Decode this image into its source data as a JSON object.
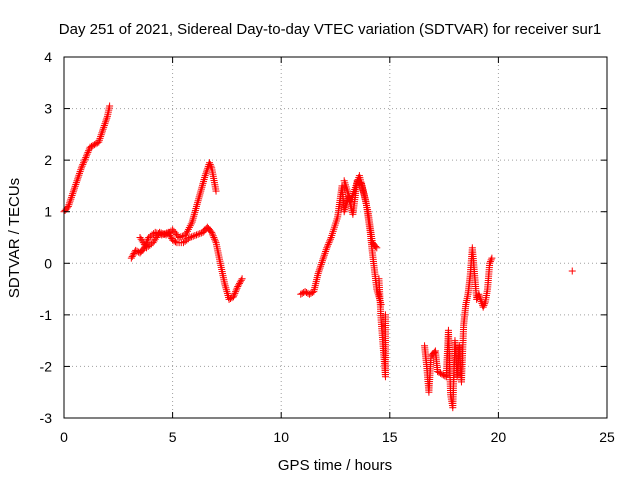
{
  "chart_data": {
    "type": "scatter",
    "title": "Day 251 of 2021, Sidereal Day-to-day VTEC variation (SDTVAR) for receiver sur1",
    "xlabel": "GPS time / hours",
    "ylabel": "SDTVAR / TECUs",
    "xlim": [
      0,
      25
    ],
    "ylim": [
      -3,
      4
    ],
    "xticks": [
      0,
      5,
      10,
      15,
      20,
      25
    ],
    "yticks": [
      -3,
      -2,
      -1,
      0,
      1,
      2,
      3,
      4
    ],
    "xtick_labels": [
      "0",
      "5",
      "10",
      "15",
      "20",
      "25"
    ],
    "ytick_labels": [
      "-3",
      "-2",
      "-1",
      "0",
      "1",
      "2",
      "3",
      "4"
    ],
    "grid": true,
    "marker": "+",
    "color": "#ff0000",
    "series": [
      {
        "name": "SDTVAR",
        "segments": [
          [
            [
              0.0,
              1.0
            ],
            [
              0.2,
              1.1
            ],
            [
              0.4,
              1.35
            ],
            [
              0.6,
              1.6
            ],
            [
              0.8,
              1.85
            ],
            [
              1.0,
              2.05
            ],
            [
              1.2,
              2.25
            ],
            [
              1.4,
              2.3
            ],
            [
              1.6,
              2.35
            ],
            [
              1.8,
              2.6
            ],
            [
              2.0,
              2.85
            ],
            [
              2.1,
              3.05
            ]
          ],
          [
            [
              3.1,
              0.1
            ],
            [
              3.3,
              0.25
            ],
            [
              3.5,
              0.2
            ],
            [
              3.7,
              0.3
            ],
            [
              3.9,
              0.5
            ],
            [
              4.2,
              0.6
            ],
            [
              4.5,
              0.55
            ],
            [
              4.8,
              0.6
            ],
            [
              5.0,
              0.45
            ],
            [
              5.2,
              0.4
            ],
            [
              5.5,
              0.4
            ],
            [
              5.8,
              0.5
            ],
            [
              6.1,
              0.55
            ],
            [
              6.4,
              0.6
            ],
            [
              6.6,
              0.7
            ],
            [
              6.8,
              0.6
            ],
            [
              7.0,
              0.4
            ],
            [
              7.2,
              0.0
            ],
            [
              7.4,
              -0.4
            ],
            [
              7.6,
              -0.7
            ],
            [
              7.8,
              -0.65
            ],
            [
              8.0,
              -0.45
            ],
            [
              8.2,
              -0.3
            ]
          ],
          [
            [
              3.5,
              0.5
            ],
            [
              3.8,
              0.3
            ],
            [
              4.1,
              0.4
            ],
            [
              4.4,
              0.6
            ],
            [
              4.7,
              0.55
            ],
            [
              5.0,
              0.65
            ],
            [
              5.3,
              0.5
            ],
            [
              5.6,
              0.55
            ],
            [
              5.9,
              0.8
            ],
            [
              6.1,
              1.1
            ],
            [
              6.3,
              1.4
            ],
            [
              6.5,
              1.7
            ],
            [
              6.7,
              1.95
            ],
            [
              6.8,
              1.85
            ],
            [
              7.0,
              1.4
            ]
          ],
          [
            [
              10.9,
              -0.6
            ],
            [
              11.1,
              -0.55
            ],
            [
              11.3,
              -0.6
            ],
            [
              11.5,
              -0.55
            ],
            [
              11.7,
              -0.2
            ],
            [
              11.9,
              0.05
            ],
            [
              12.1,
              0.3
            ],
            [
              12.3,
              0.5
            ],
            [
              12.6,
              0.9
            ],
            [
              12.8,
              1.5
            ],
            [
              12.9,
              1.0
            ],
            [
              13.1,
              1.3
            ],
            [
              13.3,
              0.95
            ],
            [
              13.5,
              1.6
            ],
            [
              13.7,
              1.55
            ],
            [
              13.9,
              1.2
            ],
            [
              14.1,
              0.6
            ],
            [
              14.2,
              0.2
            ],
            [
              14.4,
              -0.5
            ],
            [
              14.6,
              -0.8
            ]
          ],
          [
            [
              12.9,
              1.6
            ],
            [
              13.2,
              1.2
            ],
            [
              13.6,
              1.7
            ],
            [
              14.0,
              1.0
            ],
            [
              14.2,
              0.4
            ],
            [
              14.4,
              0.3
            ]
          ],
          [
            [
              14.5,
              -0.3
            ],
            [
              14.6,
              -1.1
            ],
            [
              14.7,
              -1.65
            ],
            [
              14.8,
              -2.2
            ],
            [
              14.8,
              -1.0
            ]
          ],
          [
            [
              16.6,
              -1.6
            ],
            [
              16.7,
              -2.0
            ],
            [
              16.8,
              -2.5
            ],
            [
              16.9,
              -1.8
            ],
            [
              17.1,
              -1.7
            ],
            [
              17.2,
              -2.1
            ],
            [
              17.4,
              -2.15
            ],
            [
              17.6,
              -2.2
            ],
            [
              17.7,
              -1.3
            ],
            [
              17.8,
              -2.55
            ],
            [
              17.9,
              -2.8
            ],
            [
              18.0,
              -1.5
            ],
            [
              18.1,
              -2.2
            ],
            [
              18.2,
              -1.6
            ],
            [
              18.3,
              -2.3
            ],
            [
              18.4,
              -1.2
            ],
            [
              18.5,
              -0.8
            ],
            [
              18.6,
              -0.6
            ],
            [
              18.7,
              -0.25
            ],
            [
              18.8,
              0.3
            ],
            [
              19.0,
              -0.7
            ],
            [
              19.1,
              -0.6
            ],
            [
              19.3,
              -0.85
            ],
            [
              19.4,
              -0.75
            ],
            [
              19.5,
              -0.5
            ],
            [
              19.6,
              0.0
            ],
            [
              19.7,
              0.1
            ]
          ],
          [
            [
              23.4,
              -0.15
            ]
          ]
        ]
      }
    ]
  }
}
